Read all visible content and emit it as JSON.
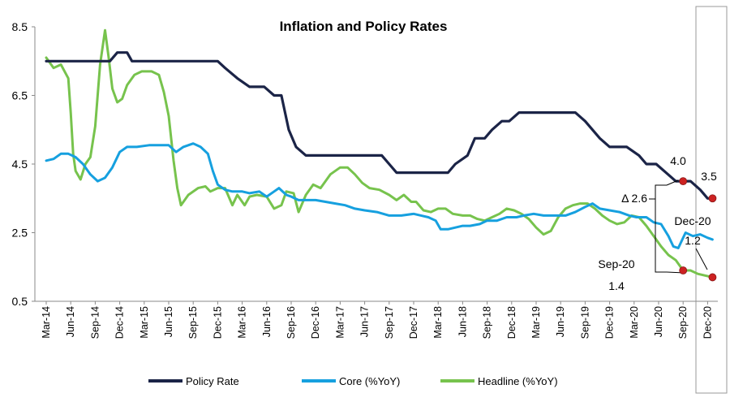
{
  "chart_data": {
    "type": "line",
    "title": "Inflation and Policy Rates",
    "xlabel": "",
    "ylabel": "",
    "ylim": [
      0.5,
      8.5
    ],
    "yticks": [
      "0.5",
      "2.5",
      "4.5",
      "6.5",
      "8.5"
    ],
    "x": [
      "Mar-14",
      "Jun-14",
      "Sep-14",
      "Dec-14",
      "Mar-15",
      "Jun-15",
      "Sep-15",
      "Dec-15",
      "Mar-16",
      "Jun-16",
      "Sep-16",
      "Dec-16",
      "Mar-17",
      "Jun-17",
      "Sep-17",
      "Dec-17",
      "Mar-18",
      "Jun-18",
      "Sep-18",
      "Dec-18",
      "Mar-19",
      "Jun-19",
      "Sep-19",
      "Dec-19",
      "Mar-20",
      "Jun-20",
      "Sep-20",
      "Dec-20"
    ],
    "grid": false,
    "legend_position": "bottom",
    "series": [
      {
        "name": "Policy Rate",
        "color": "#1b2447",
        "values": [
          [
            0,
            7.5
          ],
          [
            1.7,
            7.5
          ],
          [
            1.9,
            7.5
          ],
          [
            2.6,
            7.5
          ],
          [
            2.9,
            7.75
          ],
          [
            3.3,
            7.75
          ],
          [
            3.5,
            7.5
          ],
          [
            5.0,
            7.5
          ],
          [
            7.0,
            7.5
          ],
          [
            7.3,
            7.3
          ],
          [
            7.8,
            7.0
          ],
          [
            8.3,
            6.75
          ],
          [
            8.9,
            6.75
          ],
          [
            9.3,
            6.5
          ],
          [
            9.6,
            6.5
          ],
          [
            9.9,
            5.5
          ],
          [
            10.2,
            5.0
          ],
          [
            10.6,
            4.75
          ],
          [
            12.6,
            4.75
          ],
          [
            13.7,
            4.75
          ],
          [
            14.0,
            4.5
          ],
          [
            14.3,
            4.25
          ],
          [
            14.7,
            4.25
          ],
          [
            15.7,
            4.25
          ],
          [
            16.1,
            4.25
          ],
          [
            16.4,
            4.25
          ],
          [
            16.7,
            4.5
          ],
          [
            17.2,
            4.75
          ],
          [
            17.5,
            5.25
          ],
          [
            17.9,
            5.25
          ],
          [
            18.2,
            5.5
          ],
          [
            18.6,
            5.75
          ],
          [
            18.9,
            5.75
          ],
          [
            19.3,
            6.0
          ],
          [
            19.6,
            6.0
          ],
          [
            20.3,
            6.0
          ],
          [
            21.6,
            6.0
          ],
          [
            22.0,
            5.75
          ],
          [
            22.6,
            5.25
          ],
          [
            23.0,
            5.0
          ],
          [
            23.7,
            5.0
          ],
          [
            24.2,
            4.75
          ],
          [
            24.5,
            4.5
          ],
          [
            24.9,
            4.5
          ],
          [
            25.3,
            4.25
          ],
          [
            25.7,
            4.0
          ],
          [
            26.3,
            4.0
          ],
          [
            26.7,
            3.75
          ],
          [
            27.0,
            3.5
          ],
          [
            27.2,
            3.5
          ]
        ]
      },
      {
        "name": "Core (%YoY)",
        "color": "#16a0df",
        "values": [
          [
            0,
            4.6
          ],
          [
            0.3,
            4.65
          ],
          [
            0.6,
            4.8
          ],
          [
            0.9,
            4.8
          ],
          [
            1.2,
            4.7
          ],
          [
            1.5,
            4.5
          ],
          [
            1.8,
            4.2
          ],
          [
            2.1,
            4.0
          ],
          [
            2.4,
            4.1
          ],
          [
            2.7,
            4.4
          ],
          [
            3.0,
            4.85
          ],
          [
            3.3,
            5.0
          ],
          [
            3.7,
            5.0
          ],
          [
            4.2,
            5.05
          ],
          [
            4.6,
            5.05
          ],
          [
            5.0,
            5.05
          ],
          [
            5.3,
            4.85
          ],
          [
            5.6,
            5.0
          ],
          [
            6.0,
            5.1
          ],
          [
            6.3,
            5.0
          ],
          [
            6.6,
            4.8
          ],
          [
            6.8,
            4.3
          ],
          [
            7.0,
            3.9
          ],
          [
            7.3,
            3.75
          ],
          [
            7.6,
            3.7
          ],
          [
            8.0,
            3.7
          ],
          [
            8.3,
            3.65
          ],
          [
            8.7,
            3.7
          ],
          [
            9.0,
            3.55
          ],
          [
            9.3,
            3.7
          ],
          [
            9.5,
            3.8
          ],
          [
            9.8,
            3.6
          ],
          [
            10.0,
            3.55
          ],
          [
            10.3,
            3.45
          ],
          [
            10.7,
            3.45
          ],
          [
            11.0,
            3.45
          ],
          [
            11.4,
            3.4
          ],
          [
            11.8,
            3.35
          ],
          [
            12.2,
            3.3
          ],
          [
            12.6,
            3.2
          ],
          [
            13.0,
            3.15
          ],
          [
            13.5,
            3.1
          ],
          [
            14.0,
            3.0
          ],
          [
            14.5,
            3.0
          ],
          [
            15.0,
            3.05
          ],
          [
            15.3,
            3.0
          ],
          [
            15.6,
            2.95
          ],
          [
            15.9,
            2.85
          ],
          [
            16.1,
            2.6
          ],
          [
            16.4,
            2.6
          ],
          [
            16.7,
            2.65
          ],
          [
            17.0,
            2.7
          ],
          [
            17.3,
            2.7
          ],
          [
            17.7,
            2.75
          ],
          [
            18.0,
            2.85
          ],
          [
            18.4,
            2.85
          ],
          [
            18.8,
            2.95
          ],
          [
            19.2,
            2.95
          ],
          [
            19.5,
            3.0
          ],
          [
            19.9,
            3.05
          ],
          [
            20.3,
            3.0
          ],
          [
            20.7,
            3.0
          ],
          [
            21.2,
            3.0
          ],
          [
            21.6,
            3.1
          ],
          [
            22.0,
            3.25
          ],
          [
            22.3,
            3.35
          ],
          [
            22.6,
            3.2
          ],
          [
            23.0,
            3.15
          ],
          [
            23.4,
            3.1
          ],
          [
            23.8,
            3.0
          ],
          [
            24.1,
            2.95
          ],
          [
            24.5,
            2.95
          ],
          [
            24.8,
            2.8
          ],
          [
            25.1,
            2.75
          ],
          [
            25.4,
            2.4
          ],
          [
            25.6,
            2.1
          ],
          [
            25.8,
            2.05
          ],
          [
            26.1,
            2.5
          ],
          [
            26.4,
            2.4
          ],
          [
            26.7,
            2.45
          ],
          [
            27.0,
            2.35
          ],
          [
            27.2,
            2.3
          ]
        ]
      },
      {
        "name": "Headline (%YoY)",
        "color": "#77c34d",
        "values": [
          [
            0,
            7.6
          ],
          [
            0.3,
            7.3
          ],
          [
            0.6,
            7.4
          ],
          [
            0.9,
            7.0
          ],
          [
            1.0,
            6.0
          ],
          [
            1.1,
            4.8
          ],
          [
            1.2,
            4.3
          ],
          [
            1.4,
            4.05
          ],
          [
            1.6,
            4.5
          ],
          [
            1.8,
            4.7
          ],
          [
            2.0,
            5.6
          ],
          [
            2.2,
            7.4
          ],
          [
            2.4,
            8.4
          ],
          [
            2.55,
            7.6
          ],
          [
            2.7,
            6.7
          ],
          [
            2.9,
            6.3
          ],
          [
            3.1,
            6.4
          ],
          [
            3.3,
            6.8
          ],
          [
            3.6,
            7.1
          ],
          [
            3.9,
            7.2
          ],
          [
            4.3,
            7.2
          ],
          [
            4.6,
            7.1
          ],
          [
            4.8,
            6.6
          ],
          [
            5.0,
            5.9
          ],
          [
            5.2,
            4.6
          ],
          [
            5.35,
            3.8
          ],
          [
            5.5,
            3.3
          ],
          [
            5.8,
            3.6
          ],
          [
            6.2,
            3.8
          ],
          [
            6.5,
            3.85
          ],
          [
            6.7,
            3.7
          ],
          [
            7.0,
            3.8
          ],
          [
            7.3,
            3.8
          ],
          [
            7.6,
            3.3
          ],
          [
            7.8,
            3.6
          ],
          [
            8.1,
            3.3
          ],
          [
            8.3,
            3.55
          ],
          [
            8.6,
            3.6
          ],
          [
            9.0,
            3.55
          ],
          [
            9.3,
            3.2
          ],
          [
            9.6,
            3.3
          ],
          [
            9.8,
            3.7
          ],
          [
            10.1,
            3.65
          ],
          [
            10.3,
            3.1
          ],
          [
            10.6,
            3.6
          ],
          [
            10.9,
            3.9
          ],
          [
            11.2,
            3.8
          ],
          [
            11.6,
            4.2
          ],
          [
            12.0,
            4.4
          ],
          [
            12.3,
            4.4
          ],
          [
            12.6,
            4.2
          ],
          [
            12.9,
            3.95
          ],
          [
            13.2,
            3.8
          ],
          [
            13.6,
            3.75
          ],
          [
            14.0,
            3.6
          ],
          [
            14.3,
            3.45
          ],
          [
            14.6,
            3.6
          ],
          [
            14.9,
            3.4
          ],
          [
            15.1,
            3.4
          ],
          [
            15.4,
            3.15
          ],
          [
            15.7,
            3.1
          ],
          [
            16.0,
            3.2
          ],
          [
            16.3,
            3.2
          ],
          [
            16.6,
            3.05
          ],
          [
            17.0,
            3.0
          ],
          [
            17.3,
            3.0
          ],
          [
            17.6,
            2.9
          ],
          [
            17.9,
            2.85
          ],
          [
            18.2,
            2.95
          ],
          [
            18.5,
            3.05
          ],
          [
            18.8,
            3.2
          ],
          [
            19.1,
            3.15
          ],
          [
            19.4,
            3.05
          ],
          [
            19.7,
            2.9
          ],
          [
            20.0,
            2.65
          ],
          [
            20.3,
            2.45
          ],
          [
            20.6,
            2.55
          ],
          [
            20.9,
            2.95
          ],
          [
            21.2,
            3.2
          ],
          [
            21.5,
            3.3
          ],
          [
            21.8,
            3.35
          ],
          [
            22.1,
            3.35
          ],
          [
            22.4,
            3.2
          ],
          [
            22.7,
            3.0
          ],
          [
            23.0,
            2.85
          ],
          [
            23.3,
            2.75
          ],
          [
            23.6,
            2.8
          ],
          [
            23.9,
            3.0
          ],
          [
            24.2,
            2.95
          ],
          [
            24.5,
            2.7
          ],
          [
            24.8,
            2.4
          ],
          [
            25.1,
            2.1
          ],
          [
            25.4,
            1.85
          ],
          [
            25.7,
            1.7
          ],
          [
            26.0,
            1.4
          ],
          [
            26.3,
            1.4
          ],
          [
            26.6,
            1.3
          ],
          [
            26.9,
            1.25
          ],
          [
            27.2,
            1.2
          ]
        ]
      }
    ],
    "markers": [
      {
        "x": 26.0,
        "y": 4.0,
        "color": "#cc2222"
      },
      {
        "x": 27.2,
        "y": 3.5,
        "color": "#cc2222"
      },
      {
        "x": 26.0,
        "y": 1.4,
        "color": "#cc2222"
      },
      {
        "x": 27.2,
        "y": 1.2,
        "color": "#cc2222"
      }
    ],
    "annotations": {
      "policy_sep": "4.0",
      "policy_dec": "3.5",
      "delta": "Δ 2.6",
      "dec_label": "Dec-20",
      "headline_dec": "1.2",
      "sep_label": "Sep-20",
      "headline_sep": "1.4"
    }
  }
}
